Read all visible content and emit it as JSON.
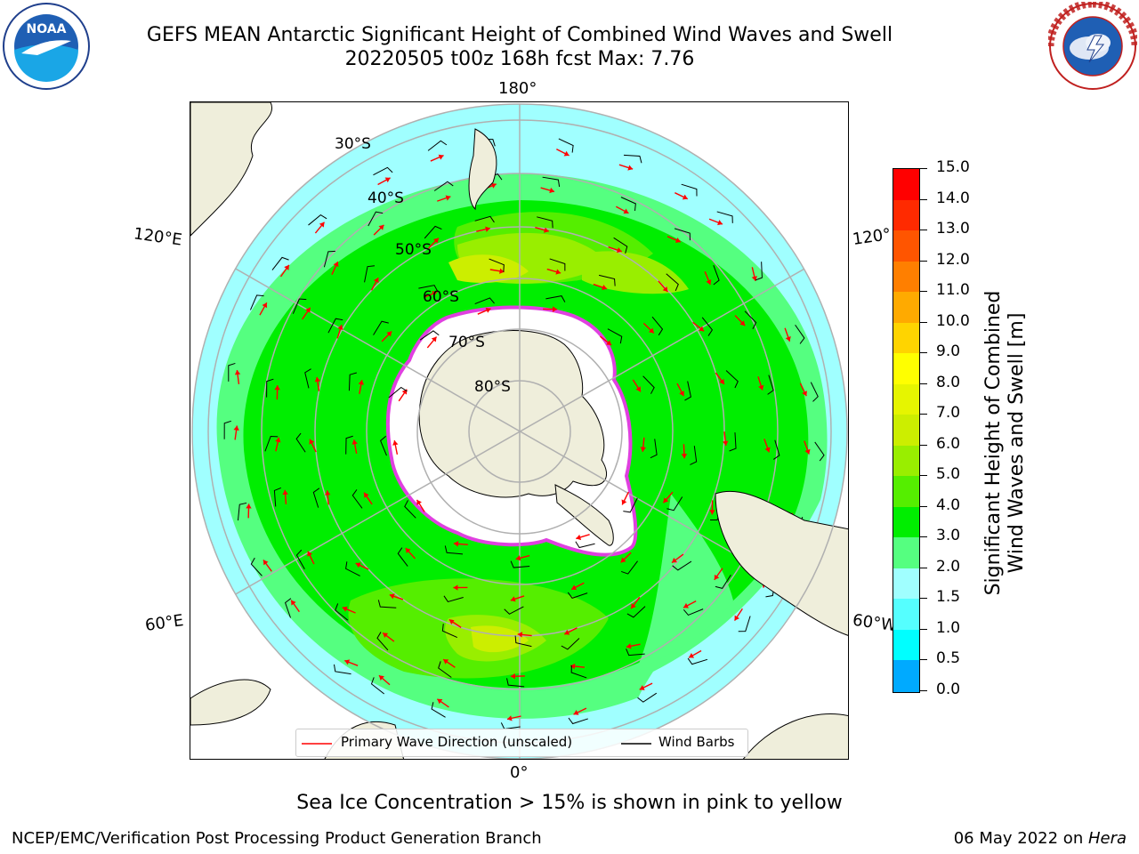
{
  "header": {
    "title_line1": "GEFS MEAN Antarctic Significant Height of Combined Wind Waves and Swell",
    "title_line2": "20220505 t00z 168h fcst   Max: 7.76"
  },
  "logos": {
    "noaa_text": "NOAA",
    "nws_text": "NATIONAL WEATHER SERVICE"
  },
  "map": {
    "longitude_labels": {
      "top": "180°",
      "upper_left": "120°E",
      "upper_right": "120°",
      "lower_left": "60°E",
      "lower_right": "60°W",
      "bottom": "0°"
    },
    "latitude_labels": [
      "30°S",
      "40°S",
      "50°S",
      "60°S",
      "70°S",
      "80°S"
    ],
    "legend": {
      "wave_label": "Primary Wave Direction (unscaled)",
      "barb_label": "Wind Barbs"
    },
    "colors": {
      "land": "#efeedb",
      "ice_edge": "#e040e0",
      "arrow": "#ff0000",
      "barb": "#000000",
      "grid": "#b0b0b0"
    }
  },
  "colorbar": {
    "label_line1": "Significant Height of Combined",
    "label_line2": "Wind Waves and Swell [m]",
    "ticks": [
      "15.0",
      "14.0",
      "13.0",
      "12.0",
      "11.0",
      "10.0",
      "9.0",
      "8.0",
      "7.0",
      "6.0",
      "5.0",
      "4.0",
      "3.0",
      "2.0",
      "1.5",
      "1.0",
      "0.5",
      "0.0"
    ],
    "colors": [
      "#ff0000",
      "#ff2a00",
      "#ff5500",
      "#ff7f00",
      "#ffaa00",
      "#ffd400",
      "#ffff00",
      "#e6f500",
      "#ccee00",
      "#99ee00",
      "#55ee00",
      "#00ee00",
      "#55ff80",
      "#a0ffff",
      "#55ffff",
      "#00ffff",
      "#00aaff",
      "#0066ff",
      "#0000ff"
    ]
  },
  "caption": "Sea Ice Concentration > 15% is shown in pink to yellow",
  "footer": {
    "left": "NCEP/EMC/Verification Post Processing Product Generation Branch",
    "date": "06 May 2022 on ",
    "host": "Hera"
  }
}
